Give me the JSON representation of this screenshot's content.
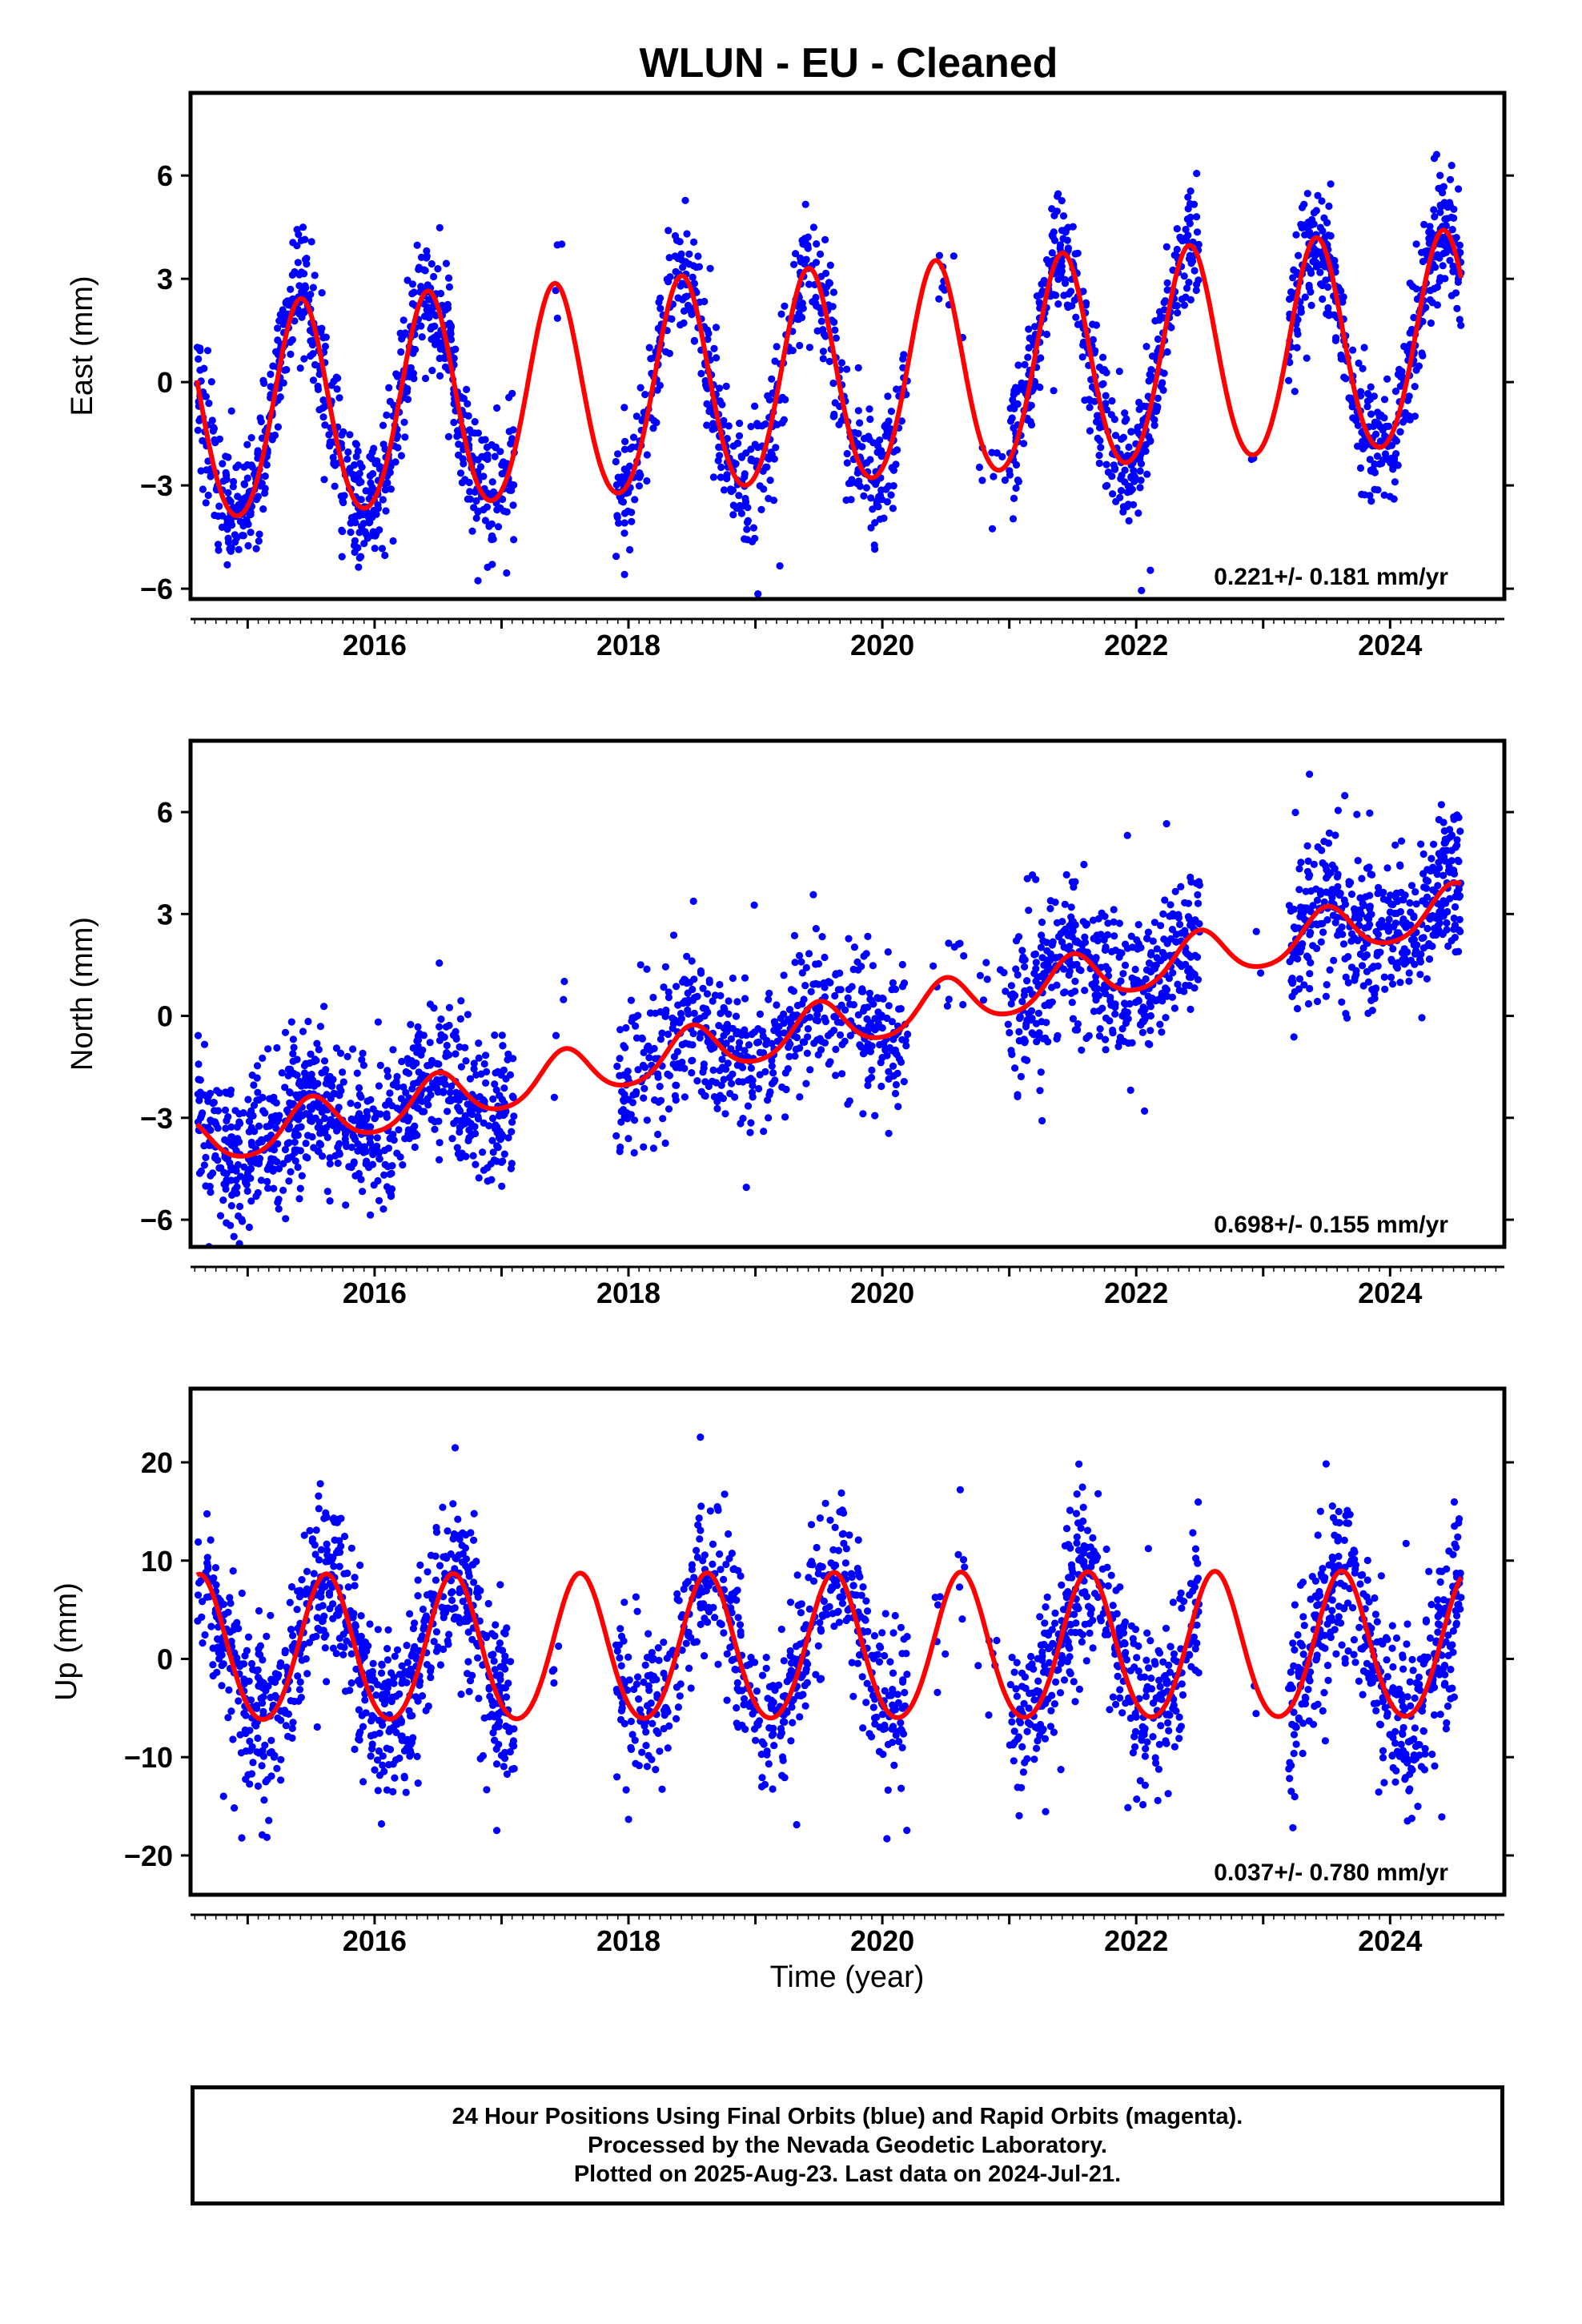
{
  "figure": {
    "title": "WLUN  - EU - Cleaned",
    "xlabel": "Time (year)",
    "colors": {
      "data_points": "#0000ff",
      "model_curve": "#ff0000",
      "frame": "#000000"
    },
    "caption": [
      "24 Hour Positions Using Final Orbits (blue) and Rapid Orbits (magenta).",
      "Processed by the Nevada Geodetic Laboratory.",
      "Plotted on 2025-Aug-23. Last data on 2024-Jul-21."
    ]
  },
  "chart_data": [
    {
      "type": "scatter",
      "component": "East",
      "ylabel": "East (mm)",
      "xlim": [
        2014.55,
        2024.9
      ],
      "ylim": [
        -6.3,
        8.4
      ],
      "xticks": [
        2016,
        2018,
        2020,
        2022,
        2024
      ],
      "yticks": [
        -6,
        -3,
        0,
        3,
        6
      ],
      "ytick_labels": [
        "−6",
        "−3",
        "0",
        "3",
        "6"
      ],
      "rate_label": "0.221+/- 0.181 mm/yr",
      "model": {
        "rate": 0.221,
        "offset": 0.0,
        "t0": 2019.6,
        "amplitude": 3.1,
        "peak_phase": 0.42,
        "semiannual_amplitude": 0.25
      },
      "data_segments": [
        {
          "start": 2014.6,
          "end": 2017.1,
          "density": 320
        },
        {
          "start": 2017.4,
          "end": 2017.5,
          "density": 40
        },
        {
          "start": 2017.9,
          "end": 2020.2,
          "density": 240
        },
        {
          "start": 2020.4,
          "end": 2021.0,
          "density": 30
        },
        {
          "start": 2021.0,
          "end": 2022.5,
          "density": 290
        },
        {
          "start": 2022.9,
          "end": 2023.0,
          "density": 20
        },
        {
          "start": 2023.2,
          "end": 2024.56,
          "density": 330
        }
      ],
      "scatter_sigma": 0.9
    },
    {
      "type": "scatter",
      "component": "North",
      "ylabel": "North (mm)",
      "xlim": [
        2014.55,
        2024.9
      ],
      "ylim": [
        -6.8,
        8.1
      ],
      "xticks": [
        2016,
        2018,
        2020,
        2022,
        2024
      ],
      "yticks": [
        -6,
        -3,
        0,
        3,
        6
      ],
      "ytick_labels": [
        "−6",
        "−3",
        "0",
        "3",
        "6"
      ],
      "rate_label": "0.698+/- 0.155 mm/yr",
      "model": {
        "rate": 0.698,
        "offset": -0.3,
        "t0": 2019.6,
        "amplitude": 0.7,
        "peak_phase": 0.5,
        "semiannual_amplitude": 0.1
      },
      "data_segments": [
        {
          "start": 2014.6,
          "end": 2017.1,
          "density": 320
        },
        {
          "start": 2017.4,
          "end": 2017.5,
          "density": 40
        },
        {
          "start": 2017.9,
          "end": 2020.2,
          "density": 240
        },
        {
          "start": 2020.4,
          "end": 2021.0,
          "density": 30
        },
        {
          "start": 2021.0,
          "end": 2022.5,
          "density": 290
        },
        {
          "start": 2022.9,
          "end": 2023.0,
          "density": 20
        },
        {
          "start": 2023.2,
          "end": 2024.56,
          "density": 330
        }
      ],
      "scatter_sigma": 1.1
    },
    {
      "type": "scatter",
      "component": "Up",
      "ylabel": "Up (mm)",
      "xlim": [
        2014.55,
        2024.9
      ],
      "ylim": [
        -24,
        27.5
      ],
      "xticks": [
        2016,
        2018,
        2020,
        2022,
        2024
      ],
      "yticks": [
        -20,
        -10,
        0,
        10,
        20
      ],
      "ytick_labels": [
        "−20",
        "−10",
        "0",
        "10",
        "20"
      ],
      "rate_label": "0.037+/- 0.780 mm/yr",
      "model": {
        "rate": 0.037,
        "offset": 0.8,
        "t0": 2019.6,
        "amplitude": 7.4,
        "peak_phase": 0.62,
        "semiannual_amplitude": 0.6
      },
      "data_segments": [
        {
          "start": 2014.6,
          "end": 2017.1,
          "density": 320
        },
        {
          "start": 2017.4,
          "end": 2017.5,
          "density": 40
        },
        {
          "start": 2017.9,
          "end": 2020.2,
          "density": 240
        },
        {
          "start": 2020.4,
          "end": 2021.0,
          "density": 30
        },
        {
          "start": 2021.0,
          "end": 2022.5,
          "density": 290
        },
        {
          "start": 2022.9,
          "end": 2023.0,
          "density": 20
        },
        {
          "start": 2023.2,
          "end": 2024.56,
          "density": 330
        }
      ],
      "scatter_sigma": 4.2
    }
  ]
}
